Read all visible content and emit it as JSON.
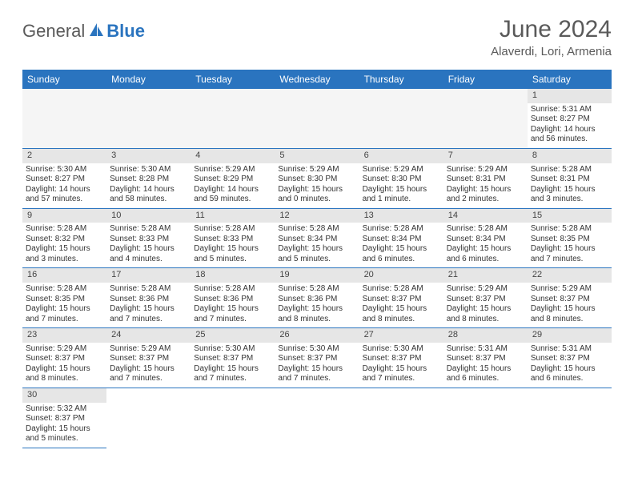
{
  "logo": {
    "general": "General",
    "blue": "Blue"
  },
  "title": "June 2024",
  "location": "Alaverdi, Lori, Armenia",
  "colors": {
    "header_bg": "#2a74bf",
    "header_text": "#ffffff",
    "daynum_bg": "#e6e6e6",
    "border": "#2a74bf",
    "title_color": "#5a5a5a"
  },
  "day_names": [
    "Sunday",
    "Monday",
    "Tuesday",
    "Wednesday",
    "Thursday",
    "Friday",
    "Saturday"
  ],
  "weeks": [
    [
      null,
      null,
      null,
      null,
      null,
      null,
      {
        "n": "1",
        "sr": "5:31 AM",
        "ss": "8:27 PM",
        "dl": "14 hours and 56 minutes."
      }
    ],
    [
      {
        "n": "2",
        "sr": "5:30 AM",
        "ss": "8:27 PM",
        "dl": "14 hours and 57 minutes."
      },
      {
        "n": "3",
        "sr": "5:30 AM",
        "ss": "8:28 PM",
        "dl": "14 hours and 58 minutes."
      },
      {
        "n": "4",
        "sr": "5:29 AM",
        "ss": "8:29 PM",
        "dl": "14 hours and 59 minutes."
      },
      {
        "n": "5",
        "sr": "5:29 AM",
        "ss": "8:30 PM",
        "dl": "15 hours and 0 minutes."
      },
      {
        "n": "6",
        "sr": "5:29 AM",
        "ss": "8:30 PM",
        "dl": "15 hours and 1 minute."
      },
      {
        "n": "7",
        "sr": "5:29 AM",
        "ss": "8:31 PM",
        "dl": "15 hours and 2 minutes."
      },
      {
        "n": "8",
        "sr": "5:28 AM",
        "ss": "8:31 PM",
        "dl": "15 hours and 3 minutes."
      }
    ],
    [
      {
        "n": "9",
        "sr": "5:28 AM",
        "ss": "8:32 PM",
        "dl": "15 hours and 3 minutes."
      },
      {
        "n": "10",
        "sr": "5:28 AM",
        "ss": "8:33 PM",
        "dl": "15 hours and 4 minutes."
      },
      {
        "n": "11",
        "sr": "5:28 AM",
        "ss": "8:33 PM",
        "dl": "15 hours and 5 minutes."
      },
      {
        "n": "12",
        "sr": "5:28 AM",
        "ss": "8:34 PM",
        "dl": "15 hours and 5 minutes."
      },
      {
        "n": "13",
        "sr": "5:28 AM",
        "ss": "8:34 PM",
        "dl": "15 hours and 6 minutes."
      },
      {
        "n": "14",
        "sr": "5:28 AM",
        "ss": "8:34 PM",
        "dl": "15 hours and 6 minutes."
      },
      {
        "n": "15",
        "sr": "5:28 AM",
        "ss": "8:35 PM",
        "dl": "15 hours and 7 minutes."
      }
    ],
    [
      {
        "n": "16",
        "sr": "5:28 AM",
        "ss": "8:35 PM",
        "dl": "15 hours and 7 minutes."
      },
      {
        "n": "17",
        "sr": "5:28 AM",
        "ss": "8:36 PM",
        "dl": "15 hours and 7 minutes."
      },
      {
        "n": "18",
        "sr": "5:28 AM",
        "ss": "8:36 PM",
        "dl": "15 hours and 7 minutes."
      },
      {
        "n": "19",
        "sr": "5:28 AM",
        "ss": "8:36 PM",
        "dl": "15 hours and 8 minutes."
      },
      {
        "n": "20",
        "sr": "5:28 AM",
        "ss": "8:37 PM",
        "dl": "15 hours and 8 minutes."
      },
      {
        "n": "21",
        "sr": "5:29 AM",
        "ss": "8:37 PM",
        "dl": "15 hours and 8 minutes."
      },
      {
        "n": "22",
        "sr": "5:29 AM",
        "ss": "8:37 PM",
        "dl": "15 hours and 8 minutes."
      }
    ],
    [
      {
        "n": "23",
        "sr": "5:29 AM",
        "ss": "8:37 PM",
        "dl": "15 hours and 8 minutes."
      },
      {
        "n": "24",
        "sr": "5:29 AM",
        "ss": "8:37 PM",
        "dl": "15 hours and 7 minutes."
      },
      {
        "n": "25",
        "sr": "5:30 AM",
        "ss": "8:37 PM",
        "dl": "15 hours and 7 minutes."
      },
      {
        "n": "26",
        "sr": "5:30 AM",
        "ss": "8:37 PM",
        "dl": "15 hours and 7 minutes."
      },
      {
        "n": "27",
        "sr": "5:30 AM",
        "ss": "8:37 PM",
        "dl": "15 hours and 7 minutes."
      },
      {
        "n": "28",
        "sr": "5:31 AM",
        "ss": "8:37 PM",
        "dl": "15 hours and 6 minutes."
      },
      {
        "n": "29",
        "sr": "5:31 AM",
        "ss": "8:37 PM",
        "dl": "15 hours and 6 minutes."
      }
    ],
    [
      {
        "n": "30",
        "sr": "5:32 AM",
        "ss": "8:37 PM",
        "dl": "15 hours and 5 minutes."
      },
      null,
      null,
      null,
      null,
      null,
      null
    ]
  ],
  "labels": {
    "sunrise": "Sunrise:",
    "sunset": "Sunset:",
    "daylight": "Daylight:"
  }
}
